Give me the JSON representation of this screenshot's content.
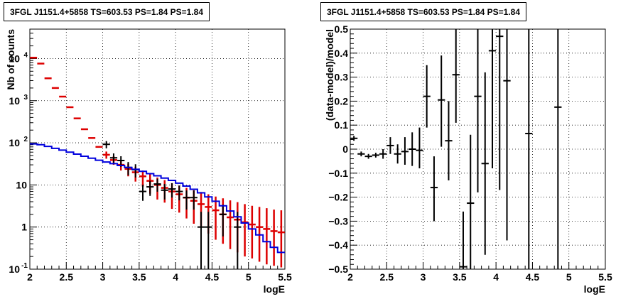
{
  "chart_data": [
    {
      "type": "histogram",
      "title": "3FGL J1151.4+5858 TS=603.53 PS=1.84 PS=1.84",
      "xlabel": "logE",
      "ylabel": "Nb of counts",
      "xlim": [
        2,
        5.5
      ],
      "ylim": [
        0.1,
        50000
      ],
      "yscale": "log",
      "grid": true,
      "x_ticks": [
        "2",
        "2.5",
        "3",
        "3.5",
        "4",
        "4.5",
        "5",
        "5.5"
      ],
      "y_ticks": [
        {
          "value": 0.1,
          "base": "10",
          "exp": "-1"
        },
        {
          "value": 1,
          "base": "1",
          "exp": ""
        },
        {
          "value": 10,
          "base": "10",
          "exp": ""
        },
        {
          "value": 100,
          "base": "10",
          "exp": "2"
        },
        {
          "value": 1000,
          "base": "10",
          "exp": "3"
        },
        {
          "value": 10000,
          "base": "10",
          "exp": "4"
        }
      ],
      "bin_edges": [
        2.0,
        2.1,
        2.2,
        2.3,
        2.4,
        2.5,
        2.6,
        2.7,
        2.8,
        2.9,
        3.0,
        3.1,
        3.2,
        3.3,
        3.4,
        3.5,
        3.6,
        3.7,
        3.8,
        3.9,
        4.0,
        4.1,
        4.2,
        4.3,
        4.4,
        4.5,
        4.6,
        4.7,
        4.8,
        4.9,
        5.0,
        5.1,
        5.2,
        5.3,
        5.4,
        5.5
      ],
      "series": [
        {
          "color": "#dd0000",
          "style": "markers-with-errors",
          "x": [
            2.05,
            2.15,
            2.25,
            2.35,
            2.45,
            2.55,
            2.65,
            2.75,
            2.85,
            2.95,
            3.05,
            3.15,
            3.25,
            3.35,
            3.45,
            3.55,
            3.65,
            3.75,
            3.85,
            3.95,
            4.05,
            4.15,
            4.25,
            4.35,
            4.45,
            4.55,
            4.65,
            4.75,
            4.85,
            4.95,
            5.05,
            5.15,
            5.25,
            5.35,
            5.45
          ],
          "y": [
            10500,
            7600,
            3400,
            2000,
            1250,
            700,
            380,
            210,
            130,
            80,
            52,
            39,
            30,
            24,
            20,
            16,
            12.5,
            10,
            8.5,
            7,
            6,
            5,
            4.2,
            3.5,
            3,
            2.5,
            2,
            1.7,
            1.5,
            1.3,
            1.15,
            1,
            0.9,
            0.8,
            0.75
          ],
          "y_low": [
            10500,
            7600,
            3400,
            2000,
            1250,
            700,
            380,
            210,
            130,
            80,
            42,
            30,
            22,
            16,
            12,
            9,
            6.2,
            4.5,
            3.8,
            2.7,
            2.2,
            1.6,
            1.2,
            1.0,
            0.7,
            0.5,
            0.4,
            0.3,
            0.25,
            0.2,
            0.18,
            0.15,
            0.13,
            0.12,
            0.11
          ],
          "y_high": [
            10500,
            7600,
            3400,
            2000,
            1250,
            700,
            380,
            210,
            130,
            80,
            62,
            48,
            38,
            32,
            27,
            22,
            18,
            15,
            13,
            11,
            9.5,
            8.5,
            7.5,
            6.8,
            6,
            5.3,
            4.8,
            4.3,
            3.9,
            3.5,
            3.2,
            3,
            2.8,
            2.6,
            2.5
          ]
        },
        {
          "color": "#000000",
          "style": "crosses",
          "x": [
            3.05,
            3.15,
            3.25,
            3.35,
            3.45,
            3.55,
            3.65,
            3.75,
            3.85,
            3.95,
            4.05,
            4.15,
            4.25,
            4.35,
            4.45,
            4.65,
            4.85
          ],
          "y": [
            92,
            44,
            38,
            26,
            23,
            7,
            9,
            10.5,
            7.5,
            8,
            7,
            5,
            5,
            1,
            1,
            2,
            1
          ],
          "y_low": [
            74,
            32,
            27,
            17,
            15,
            4.2,
            5.5,
            6.9,
            4.5,
            5,
            4.3,
            2.6,
            2.6,
            0.1,
            0.1,
            0.6,
            0.1
          ],
          "y_high": [
            110,
            56,
            48,
            35,
            31,
            10,
            12.5,
            14,
            10.5,
            11,
            9.7,
            7.4,
            7.4,
            2.3,
            2.3,
            3.4,
            2.3
          ],
          "x_err": 0.05
        },
        {
          "color": "#0000dd",
          "style": "step",
          "values": [
            94,
            90,
            82,
            74,
            67,
            60,
            54,
            48,
            43,
            38.5,
            35,
            32,
            29,
            26,
            23.5,
            21,
            18.5,
            16.5,
            14.5,
            12.8,
            11,
            9.4,
            7.9,
            6.5,
            5.2,
            4.1,
            3.2,
            2.4,
            1.75,
            1.25,
            0.9,
            0.65,
            0.45,
            0.33,
            0.25
          ]
        }
      ]
    },
    {
      "type": "scatter",
      "title": "3FGL J1151.4+5858 TS=603.53 PS=1.84 PS=1.84",
      "xlabel": "logE",
      "ylabel": "(data-model)/model",
      "xlim": [
        2,
        5.5
      ],
      "ylim": [
        -0.5,
        0.5
      ],
      "grid": true,
      "x_ticks": [
        "2",
        "2.5",
        "3",
        "3.5",
        "4",
        "4.5",
        "5",
        "5.5"
      ],
      "y_ticks": [
        "−0.5",
        "−0.4",
        "−0.3",
        "−0.2",
        "−0.1",
        "0",
        "0.1",
        "0.2",
        "0.3",
        "0.4",
        "0.5"
      ],
      "series": [
        {
          "color": "#000000",
          "style": "crosses",
          "x_err": 0.05,
          "x": [
            2.05,
            2.15,
            2.25,
            2.35,
            2.45,
            2.55,
            2.65,
            2.75,
            2.85,
            2.95,
            3.05,
            3.15,
            3.25,
            3.35,
            3.45,
            3.55,
            3.65,
            3.75,
            3.85,
            3.95,
            4.05,
            4.15,
            4.45,
            4.85
          ],
          "y": [
            0.045,
            -0.02,
            -0.03,
            -0.025,
            -0.02,
            0.015,
            -0.02,
            -0.01,
            0.0,
            -0.005,
            0.22,
            -0.16,
            0.205,
            0.035,
            0.31,
            -0.49,
            -0.225,
            0.22,
            -0.06,
            0.41,
            0.47,
            0.285,
            0.065,
            0.175
          ],
          "y_low": [
            0.035,
            -0.03,
            -0.04,
            -0.035,
            -0.04,
            -0.02,
            -0.06,
            -0.065,
            -0.07,
            -0.08,
            0.09,
            -0.3,
            0.01,
            -0.13,
            0.11,
            -0.5,
            -0.5,
            -0.18,
            -0.44,
            -0.08,
            -0.17,
            -0.38,
            -0.5,
            -0.5
          ],
          "y_high": [
            0.055,
            -0.01,
            -0.02,
            -0.015,
            0.0,
            0.05,
            0.02,
            0.05,
            0.07,
            0.09,
            0.35,
            -0.03,
            0.39,
            0.2,
            0.5,
            -0.26,
            0.06,
            0.5,
            0.32,
            0.5,
            0.5,
            0.5,
            0.5,
            0.5
          ]
        }
      ]
    }
  ]
}
